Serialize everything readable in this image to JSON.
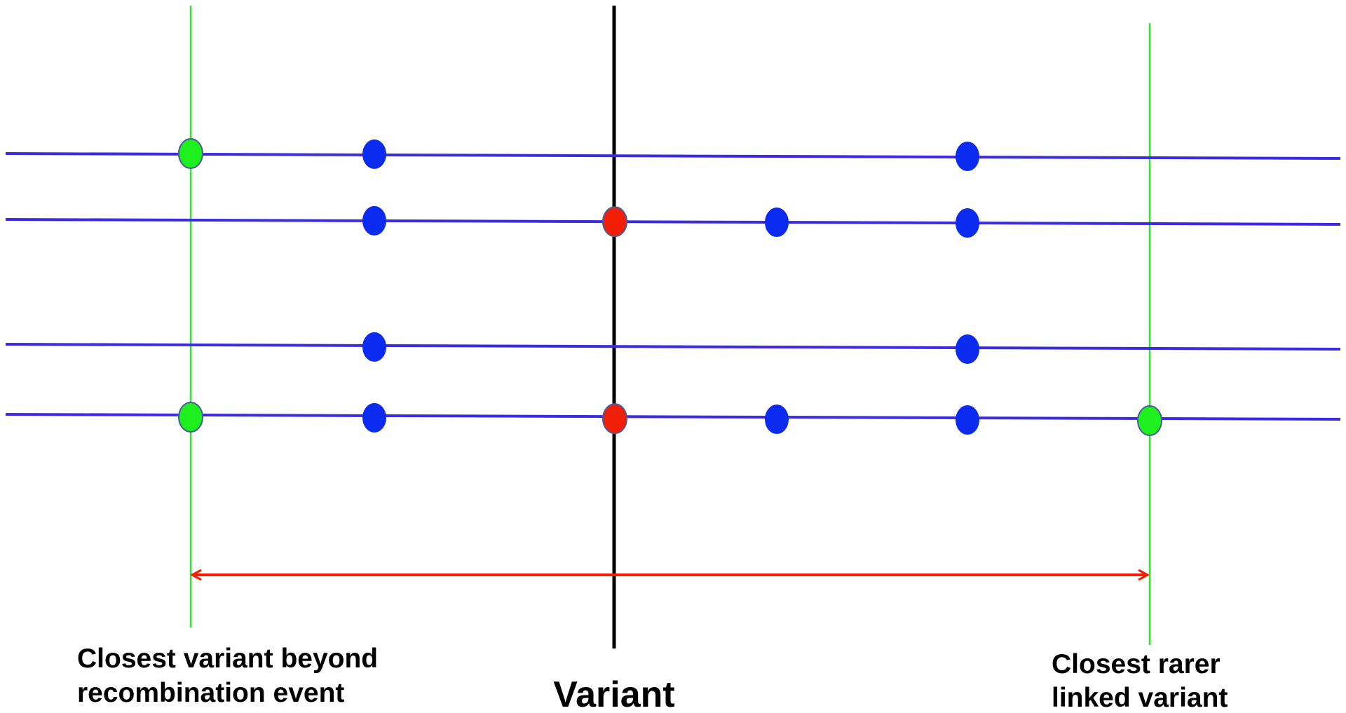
{
  "labels": {
    "left_line1": "Closest variant beyond",
    "left_line2": "recombination event",
    "center": "Variant",
    "right_line1": "Closest rarer",
    "right_line2": "linked variant"
  },
  "colors": {
    "haplotype_line": "#3a2de0",
    "marker_blue": "#0b2cf0",
    "marker_green": "#1ef01e",
    "marker_red": "#f21e06",
    "green_boundary": "#2ee82e",
    "variant_line": "#000000",
    "span_arrow": "#f01e06"
  },
  "haplotypes": [
    {
      "id": 1,
      "markers": [
        {
          "color": "green",
          "site": "left-boundary"
        },
        {
          "color": "blue",
          "site": "site-a"
        },
        {
          "color": "blue",
          "site": "site-c"
        }
      ]
    },
    {
      "id": 2,
      "markers": [
        {
          "color": "blue",
          "site": "site-a"
        },
        {
          "color": "red",
          "site": "variant"
        },
        {
          "color": "blue",
          "site": "site-b"
        },
        {
          "color": "blue",
          "site": "site-c"
        }
      ]
    },
    {
      "id": 3,
      "markers": [
        {
          "color": "blue",
          "site": "site-a"
        },
        {
          "color": "blue",
          "site": "site-c"
        }
      ]
    },
    {
      "id": 4,
      "markers": [
        {
          "color": "green",
          "site": "left-boundary"
        },
        {
          "color": "blue",
          "site": "site-a"
        },
        {
          "color": "red",
          "site": "variant"
        },
        {
          "color": "blue",
          "site": "site-b"
        },
        {
          "color": "blue",
          "site": "site-c"
        },
        {
          "color": "green",
          "site": "right-boundary"
        }
      ]
    }
  ]
}
